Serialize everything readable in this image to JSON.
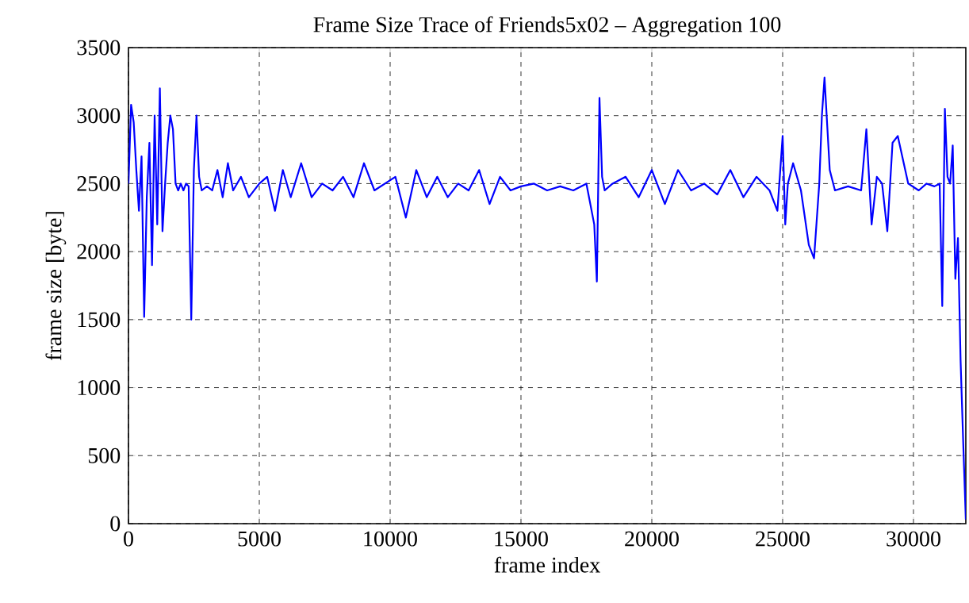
{
  "chart_data": {
    "type": "line",
    "title": "Frame Size Trace of Friends5x02 – Aggregation 100",
    "xlabel": "frame index",
    "ylabel": "frame size [byte]",
    "xlim": [
      0,
      32000
    ],
    "ylim": [
      0,
      3500
    ],
    "xticks": [
      0,
      5000,
      10000,
      15000,
      20000,
      25000,
      30000
    ],
    "yticks": [
      0,
      500,
      1000,
      1500,
      2000,
      2500,
      3000,
      3500
    ],
    "grid": true,
    "series": [
      {
        "color": "#0000ff",
        "x": [
          0,
          100,
          200,
          300,
          400,
          500,
          600,
          700,
          800,
          900,
          1000,
          1100,
          1200,
          1300,
          1400,
          1500,
          1600,
          1700,
          1800,
          1900,
          2000,
          2100,
          2200,
          2300,
          2400,
          2500,
          2600,
          2700,
          2800,
          3000,
          3200,
          3400,
          3600,
          3800,
          4000,
          4300,
          4600,
          5000,
          5300,
          5600,
          5900,
          6200,
          6600,
          7000,
          7400,
          7800,
          8200,
          8600,
          9000,
          9400,
          9800,
          10200,
          10600,
          11000,
          11400,
          11800,
          12200,
          12600,
          13000,
          13400,
          13800,
          14200,
          14600,
          15000,
          15500,
          16000,
          16500,
          17000,
          17500,
          17800,
          17900,
          18000,
          18100,
          18200,
          18500,
          19000,
          19500,
          20000,
          20500,
          21000,
          21500,
          22000,
          22500,
          23000,
          23500,
          24000,
          24500,
          24800,
          25000,
          25100,
          25200,
          25400,
          25700,
          26000,
          26200,
          26400,
          26500,
          26600,
          26800,
          27000,
          27500,
          28000,
          28200,
          28400,
          28600,
          28800,
          29000,
          29200,
          29400,
          29800,
          30200,
          30500,
          30800,
          31000,
          31100,
          31200,
          31300,
          31400,
          31500,
          31600,
          31700,
          31800,
          31900,
          32000
        ],
        "values": [
          2500,
          3080,
          2950,
          2600,
          2300,
          2700,
          1520,
          2400,
          2800,
          1900,
          3000,
          2200,
          3200,
          2150,
          2500,
          2800,
          3000,
          2900,
          2500,
          2450,
          2500,
          2450,
          2500,
          2480,
          1500,
          2600,
          3000,
          2550,
          2450,
          2480,
          2450,
          2600,
          2400,
          2650,
          2450,
          2550,
          2400,
          2500,
          2550,
          2300,
          2600,
          2400,
          2650,
          2400,
          2500,
          2450,
          2550,
          2400,
          2650,
          2450,
          2500,
          2550,
          2250,
          2600,
          2400,
          2550,
          2400,
          2500,
          2450,
          2600,
          2350,
          2550,
          2450,
          2480,
          2500,
          2450,
          2480,
          2450,
          2500,
          2200,
          1780,
          3130,
          2550,
          2450,
          2500,
          2550,
          2400,
          2600,
          2350,
          2600,
          2450,
          2500,
          2420,
          2600,
          2400,
          2550,
          2450,
          2300,
          2850,
          2200,
          2500,
          2650,
          2450,
          2050,
          1950,
          2500,
          3000,
          3280,
          2600,
          2450,
          2480,
          2450,
          2900,
          2200,
          2550,
          2500,
          2150,
          2800,
          2850,
          2500,
          2450,
          2500,
          2480,
          2500,
          1600,
          3050,
          2550,
          2500,
          2780,
          1800,
          2100,
          1200,
          600,
          30
        ]
      }
    ]
  }
}
